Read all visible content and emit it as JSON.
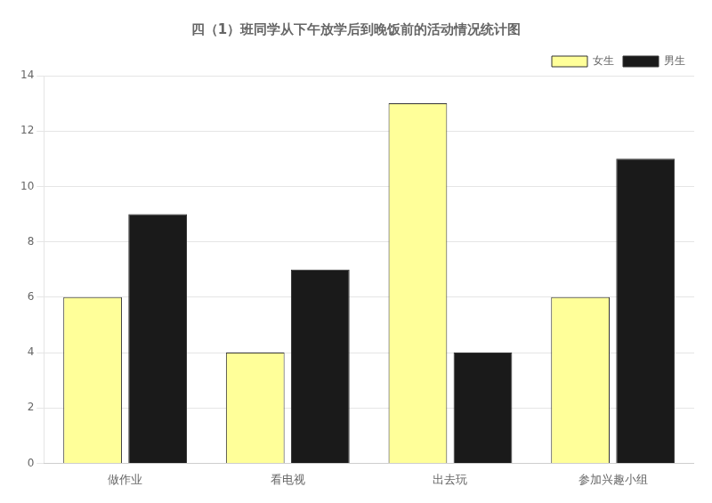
{
  "chart_data": {
    "type": "bar",
    "title": "四（1）班同学从下午放学后到晚饭前的活动情况统计图",
    "categories": [
      "做作业",
      "看电视",
      "出去玩",
      "参加兴趣小组"
    ],
    "series": [
      {
        "name": "女生",
        "color": "#ffff99",
        "values": [
          6,
          4,
          13,
          6
        ]
      },
      {
        "name": "男生",
        "color": "#1a1a1a",
        "values": [
          9,
          7,
          4,
          11
        ]
      }
    ],
    "ylim": [
      0,
      14
    ],
    "yticks": [
      0,
      2,
      4,
      6,
      8,
      10,
      12,
      14
    ],
    "grid": "y",
    "legend": "upper right"
  }
}
